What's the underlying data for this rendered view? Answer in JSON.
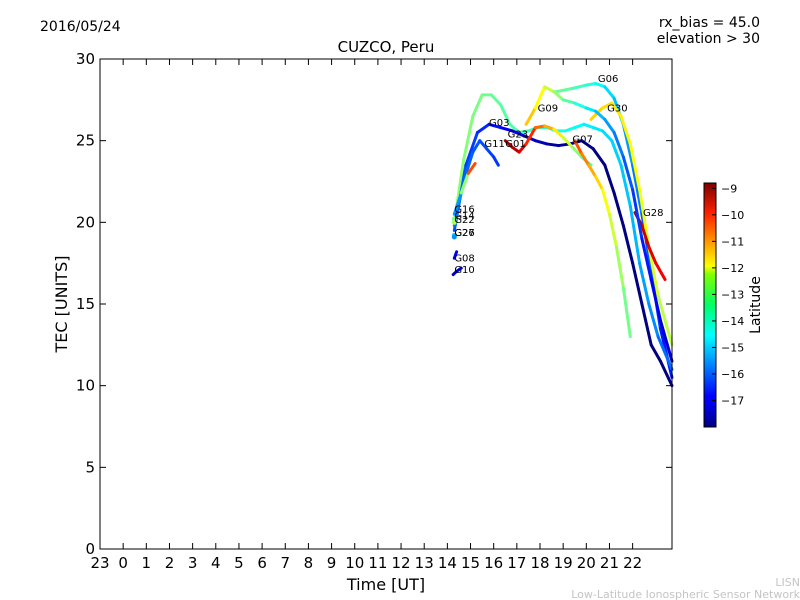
{
  "chart_data": {
    "type": "line",
    "title": "CUZCO, Peru",
    "date": "2016/05/24",
    "top_right_lines": [
      "rx_bias = 45.0",
      "elevation > 30"
    ],
    "xlabel": "Time [UT]",
    "ylabel": "TEC [UNITS]",
    "x_ticks": [
      "23",
      "0",
      "1",
      "2",
      "3",
      "4",
      "5",
      "6",
      "7",
      "8",
      "9",
      "10",
      "11",
      "12",
      "13",
      "14",
      "15",
      "16",
      "17",
      "18",
      "19",
      "20",
      "21",
      "22"
    ],
    "xlim": [
      -1,
      23.7
    ],
    "ylim": [
      0,
      30
    ],
    "y_ticks": [
      0,
      5,
      10,
      15,
      20,
      25,
      30
    ],
    "colorbar": {
      "label": "Latitude",
      "range": [
        -18,
        -8.8
      ],
      "ticks": [
        -9,
        -10,
        -11,
        -12,
        -13,
        -14,
        -15,
        -16,
        -17
      ]
    },
    "footer_lines": [
      "LISN",
      "Low-Latitude Ionospheric Sensor Network"
    ],
    "series": [
      {
        "name": "G06",
        "x": [
          18.7,
          19.4,
          20.0,
          20.4,
          20.8,
          21.2,
          21.6,
          22.0,
          22.4,
          22.8,
          23.2,
          23.7
        ],
        "y": [
          28.0,
          28.2,
          28.4,
          28.5,
          28.3,
          27.6,
          26.0,
          23.5,
          20.5,
          17.0,
          13.5,
          10.5
        ],
        "lat": [
          -13.5,
          -13.8,
          -14.1,
          -14.4,
          -14.7,
          -15.0,
          -15.3,
          -15.6,
          -15.9,
          -16.2,
          -16.5,
          -16.8
        ],
        "label_pos": [
          20.5,
          28.6
        ]
      },
      {
        "name": "G30",
        "x": [
          20.2,
          20.7,
          21.1,
          21.5,
          21.9,
          22.3,
          22.7,
          23.1,
          23.7
        ],
        "y": [
          26.3,
          27.0,
          27.3,
          26.5,
          24.8,
          22.0,
          18.5,
          15.5,
          12.5
        ],
        "lat": [
          -11.8,
          -11.9,
          -12.0,
          -12.1,
          -12.2,
          -12.3,
          -12.5,
          -12.7,
          -13.0
        ],
        "label_pos": [
          20.9,
          26.8
        ]
      },
      {
        "name": "G28",
        "x": [
          22.1,
          22.4,
          22.7,
          23.0,
          23.4
        ],
        "y": [
          20.6,
          19.8,
          18.5,
          17.5,
          16.5
        ],
        "lat": [
          -9.2,
          -9.4,
          -9.6,
          -9.8,
          -10.0
        ],
        "label_pos": [
          22.45,
          20.4
        ]
      },
      {
        "name": "G09",
        "x": [
          17.4,
          17.8,
          18.2,
          18.6,
          19.0,
          19.5,
          20.0,
          20.4,
          20.8,
          21.2,
          21.6,
          22.0,
          22.4,
          22.8,
          23.2,
          23.7
        ],
        "y": [
          26.0,
          27.0,
          28.3,
          28.0,
          27.5,
          27.3,
          27.0,
          26.8,
          26.3,
          25.5,
          24.0,
          22.0,
          19.0,
          16.5,
          14.0,
          11.5
        ],
        "lat": [
          -11.5,
          -12.0,
          -12.5,
          -13.0,
          -13.5,
          -14.0,
          -14.5,
          -15.0,
          -15.3,
          -15.6,
          -15.9,
          -16.2,
          -16.5,
          -16.8,
          -17.1,
          -17.4
        ],
        "label_pos": [
          17.9,
          26.8
        ]
      },
      {
        "name": "G03",
        "x": [
          14.3,
          14.7,
          15.1,
          15.5,
          15.9,
          16.3,
          16.7,
          17.1,
          17.5,
          17.9,
          18.3,
          18.7,
          19.1,
          19.5,
          19.9,
          20.3,
          20.7,
          21.1,
          21.5,
          21.9,
          22.3,
          22.7,
          23.1,
          23.7
        ],
        "y": [
          20.0,
          23.8,
          26.5,
          27.8,
          27.8,
          27.2,
          26.0,
          25.5,
          25.6,
          25.8,
          25.8,
          25.6,
          25.6,
          25.8,
          26.0,
          25.8,
          25.6,
          25.0,
          23.5,
          21.0,
          17.5,
          15.0,
          13.0,
          11.0
        ],
        "lat": [
          -13.2,
          -13.3,
          -13.4,
          -13.5,
          -13.6,
          -13.7,
          -13.8,
          -13.9,
          -14.0,
          -14.1,
          -14.2,
          -14.3,
          -14.4,
          -14.5,
          -14.6,
          -14.7,
          -14.8,
          -14.9,
          -15.0,
          -15.1,
          -15.3,
          -15.5,
          -15.7,
          -16.0
        ],
        "label_pos": [
          15.8,
          25.9
        ]
      },
      {
        "name": "G23",
        "x": [
          14.3,
          14.8,
          15.3,
          15.8,
          16.3,
          16.8,
          17.3,
          17.8,
          18.3,
          18.8,
          19.3,
          19.8,
          20.3,
          20.8,
          21.2,
          21.6,
          22.0,
          22.4,
          22.8,
          23.2,
          23.7
        ],
        "y": [
          19.5,
          23.5,
          25.5,
          26.0,
          25.8,
          25.6,
          25.3,
          25.0,
          24.8,
          24.7,
          24.8,
          25.0,
          24.5,
          23.5,
          21.8,
          19.8,
          17.5,
          15.0,
          12.5,
          11.5,
          10.0
        ],
        "lat": [
          -16.0,
          -16.2,
          -16.4,
          -16.6,
          -16.8,
          -17.0,
          -17.2,
          -17.4,
          -17.6,
          -17.8,
          -17.9,
          -17.9,
          -18.0,
          -18.0,
          -18.0,
          -18.0,
          -18.0,
          -18.0,
          -18.0,
          -18.0,
          -18.0
        ],
        "label_pos": [
          16.6,
          25.2
        ]
      },
      {
        "name": "G11",
        "x": [
          14.3,
          14.7,
          15.1,
          15.4,
          15.7,
          16.0,
          16.2
        ],
        "y": [
          19.8,
          22.5,
          24.3,
          25.0,
          24.5,
          24.0,
          23.5
        ],
        "lat": [
          -15.8,
          -15.9,
          -16.0,
          -16.1,
          -16.2,
          -16.3,
          -16.4
        ],
        "label_pos": [
          15.6,
          24.6
        ]
      },
      {
        "name": "G01",
        "x": [
          16.5,
          16.8,
          17.1,
          17.4,
          17.8,
          18.2,
          18.6,
          19.0,
          19.4,
          19.8,
          20.2
        ],
        "y": [
          25.0,
          24.6,
          24.3,
          24.8,
          25.8,
          25.9,
          25.7,
          25.2,
          24.6,
          24.0,
          23.5
        ],
        "lat": [
          -9.0,
          -9.2,
          -9.4,
          -10.0,
          -10.6,
          -11.2,
          -11.8,
          -12.4,
          -13.0,
          -13.6,
          -14.2
        ],
        "label_pos": [
          16.5,
          24.6
        ]
      },
      {
        "name": "G07",
        "x": [
          19.5,
          19.8,
          20.1,
          20.4,
          20.7,
          21.0,
          21.3,
          21.6,
          21.9
        ],
        "y": [
          25.0,
          24.2,
          23.5,
          22.8,
          22.0,
          20.5,
          18.5,
          16.0,
          13.0
        ],
        "lat": [
          -10.5,
          -10.9,
          -11.3,
          -11.7,
          -12.1,
          -12.5,
          -12.9,
          -13.3,
          -13.7
        ],
        "label_pos": [
          19.4,
          24.9
        ]
      },
      {
        "name": "G16",
        "x": [
          14.3,
          14.6,
          14.9,
          15.2
        ],
        "y": [
          20.5,
          21.8,
          23.0,
          23.6
        ],
        "lat": [
          -16.5,
          -14.5,
          -12.0,
          -9.2
        ],
        "label_pos": [
          14.3,
          20.6
        ]
      },
      {
        "name": "G14",
        "x": [
          14.3
        ],
        "y": [
          20.2
        ],
        "lat": [
          -13.5
        ],
        "label_pos": [
          14.3,
          20.2
        ]
      },
      {
        "name": "G22",
        "x": [
          14.3
        ],
        "y": [
          20.0
        ],
        "lat": [
          -13.0
        ],
        "label_pos": [
          14.3,
          19.95
        ]
      },
      {
        "name": "G27",
        "x": [
          14.3
        ],
        "y": [
          19.2
        ],
        "lat": [
          -15.0
        ],
        "label_pos": [
          14.3,
          19.15
        ]
      },
      {
        "name": "G26",
        "x": [
          14.3
        ],
        "y": [
          19.1
        ],
        "lat": [
          -15.5
        ],
        "label_pos": [
          14.3,
          19.15
        ]
      },
      {
        "name": "G08",
        "x": [
          14.3,
          14.4
        ],
        "y": [
          17.8,
          18.2
        ],
        "lat": [
          -17.2,
          -17.0
        ],
        "label_pos": [
          14.3,
          17.6
        ]
      },
      {
        "name": "G10",
        "x": [
          14.25,
          14.4,
          14.6
        ],
        "y": [
          16.8,
          17.0,
          17.2
        ],
        "lat": [
          -17.5,
          -17.3,
          -17.1
        ],
        "label_pos": [
          14.3,
          16.9
        ]
      }
    ]
  }
}
